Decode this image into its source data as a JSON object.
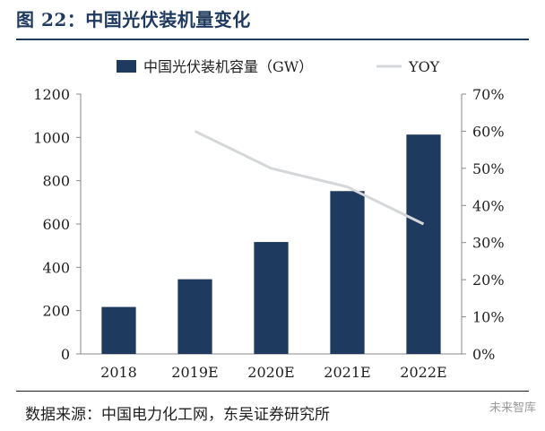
{
  "header": {
    "title": "图 22：中国光伏装机量变化"
  },
  "footer": {
    "source": "数据来源：中国电力化工网，东吴证券研究所",
    "watermark": "未来智库"
  },
  "colors": {
    "bar": "#1f3a5f",
    "yoy_line": "#d5d7da",
    "axis": "#8a8a8a",
    "title": "#1f3a5f"
  },
  "chart_data": {
    "type": "bar",
    "categories": [
      "2018",
      "2019E",
      "2020E",
      "2021E",
      "2022E"
    ],
    "series": [
      {
        "name": "中国光伏装机容量（GW）",
        "type": "bar",
        "axis": "left",
        "values": [
          217,
          345,
          517,
          752,
          1013
        ]
      },
      {
        "name": "YOY",
        "type": "line",
        "axis": "right",
        "values": [
          null,
          0.6,
          0.5,
          0.45,
          0.35
        ]
      }
    ],
    "ylim": [
      0,
      1200
    ],
    "yticks": [
      "0",
      "200",
      "400",
      "600",
      "800",
      "1000",
      "1200"
    ],
    "y2lim": [
      0,
      0.7
    ],
    "y2ticks": [
      "0%",
      "10%",
      "20%",
      "30%",
      "40%",
      "50%",
      "60%",
      "70%"
    ],
    "legend_position": "top",
    "grid": false
  }
}
